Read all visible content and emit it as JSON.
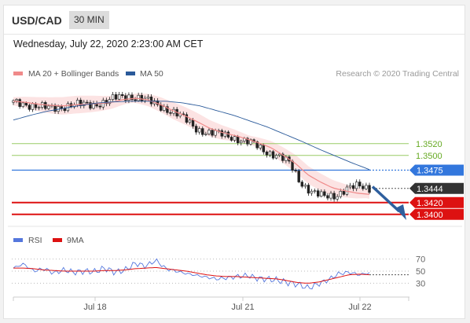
{
  "header": {
    "symbol": "USD/CAD",
    "timeframe": "30 MIN",
    "datetime": "Wednesday, July 22, 2020 2:23:00 AM CET"
  },
  "legend": {
    "ma20_bb": "MA 20 + Bollinger Bands",
    "ma50": "MA 50",
    "credit": "Research © 2020 Trading Central",
    "rsi": "RSI",
    "ma9": "9MA"
  },
  "colors": {
    "ma20": "#f08a8a",
    "ma50": "#2a5a9a",
    "band": "#fbd9d9",
    "resistance": "#99cc66",
    "pivot_line": "#3377dd",
    "support": "#dd1111",
    "last_price_tag": "#333333",
    "arrow": "#2e5f9e",
    "rsi": "#5577dd",
    "rsi_ma": "#dd1111"
  },
  "chart_data": [
    {
      "type": "candlestick",
      "series": [
        {
          "name": "MA 20 + Bollinger Bands"
        },
        {
          "name": "MA 50"
        }
      ],
      "x_ticks": [
        "Jul 18",
        "Jul 21",
        "Jul 22"
      ],
      "ylim": [
        1.3385,
        1.3625
      ],
      "levels": [
        {
          "label": "1.3520",
          "value": 1.352,
          "kind": "resistance"
        },
        {
          "label": "1.3500",
          "value": 1.35,
          "kind": "resistance"
        },
        {
          "label": "1.3475",
          "value": 1.3475,
          "kind": "pivot"
        },
        {
          "label": "1.3444",
          "value": 1.3444,
          "kind": "last"
        },
        {
          "label": "1.3420",
          "value": 1.342,
          "kind": "support"
        },
        {
          "label": "1.3400",
          "value": 1.34,
          "kind": "support"
        }
      ],
      "price_path": [
        1.359,
        1.3588,
        1.3583,
        1.358,
        1.3582,
        1.3585,
        1.3586,
        1.3587,
        1.359,
        1.3598,
        1.3601,
        1.3597,
        1.359,
        1.3582,
        1.3573,
        1.356,
        1.3545,
        1.3538,
        1.3536,
        1.3532,
        1.3525,
        1.3518,
        1.3507,
        1.35,
        1.3487,
        1.3455,
        1.3438,
        1.3429,
        1.3432,
        1.3444,
        1.3447,
        1.3444
      ],
      "ma20_path": [
        1.3592,
        1.359,
        1.3587,
        1.3585,
        1.3584,
        1.3586,
        1.3587,
        1.3588,
        1.359,
        1.3595,
        1.3597,
        1.3594,
        1.3586,
        1.3576,
        1.3567,
        1.3557,
        1.3546,
        1.3539,
        1.3534,
        1.3528,
        1.3521,
        1.3513,
        1.35,
        1.3486,
        1.3467,
        1.3455,
        1.3445,
        1.344,
        1.3436,
        1.3434
      ],
      "ma50_path": [
        1.356,
        1.3568,
        1.3575,
        1.358,
        1.3585,
        1.3589,
        1.3591,
        1.3592,
        1.3592,
        1.3592,
        1.3589,
        1.3584,
        1.3576,
        1.3568,
        1.3558,
        1.3548,
        1.3536,
        1.3524,
        1.3511,
        1.3499,
        1.3487,
        1.3476
      ],
      "band_width": 0.001
    },
    {
      "type": "line",
      "series": [
        {
          "name": "RSI"
        },
        {
          "name": "9MA"
        }
      ],
      "ylim": [
        15,
        85
      ],
      "y_ticks": [
        70,
        50,
        30
      ],
      "rsi_path": [
        55,
        62,
        50,
        54,
        47,
        52,
        48,
        50,
        49,
        55,
        48,
        52,
        63,
        58,
        68,
        54,
        50,
        46,
        43,
        40,
        37,
        39,
        41,
        43,
        38,
        37,
        35,
        31,
        28,
        22,
        29,
        36,
        46,
        48,
        44,
        47
      ],
      "ma9_path": [
        55,
        55,
        54,
        52,
        51,
        50,
        50,
        50,
        50,
        51,
        51,
        52,
        54,
        55,
        56,
        54,
        52,
        50,
        47,
        44,
        42,
        41,
        41,
        40,
        39,
        38,
        37,
        34,
        31,
        30,
        32,
        36,
        40,
        44,
        45,
        44
      ]
    }
  ]
}
